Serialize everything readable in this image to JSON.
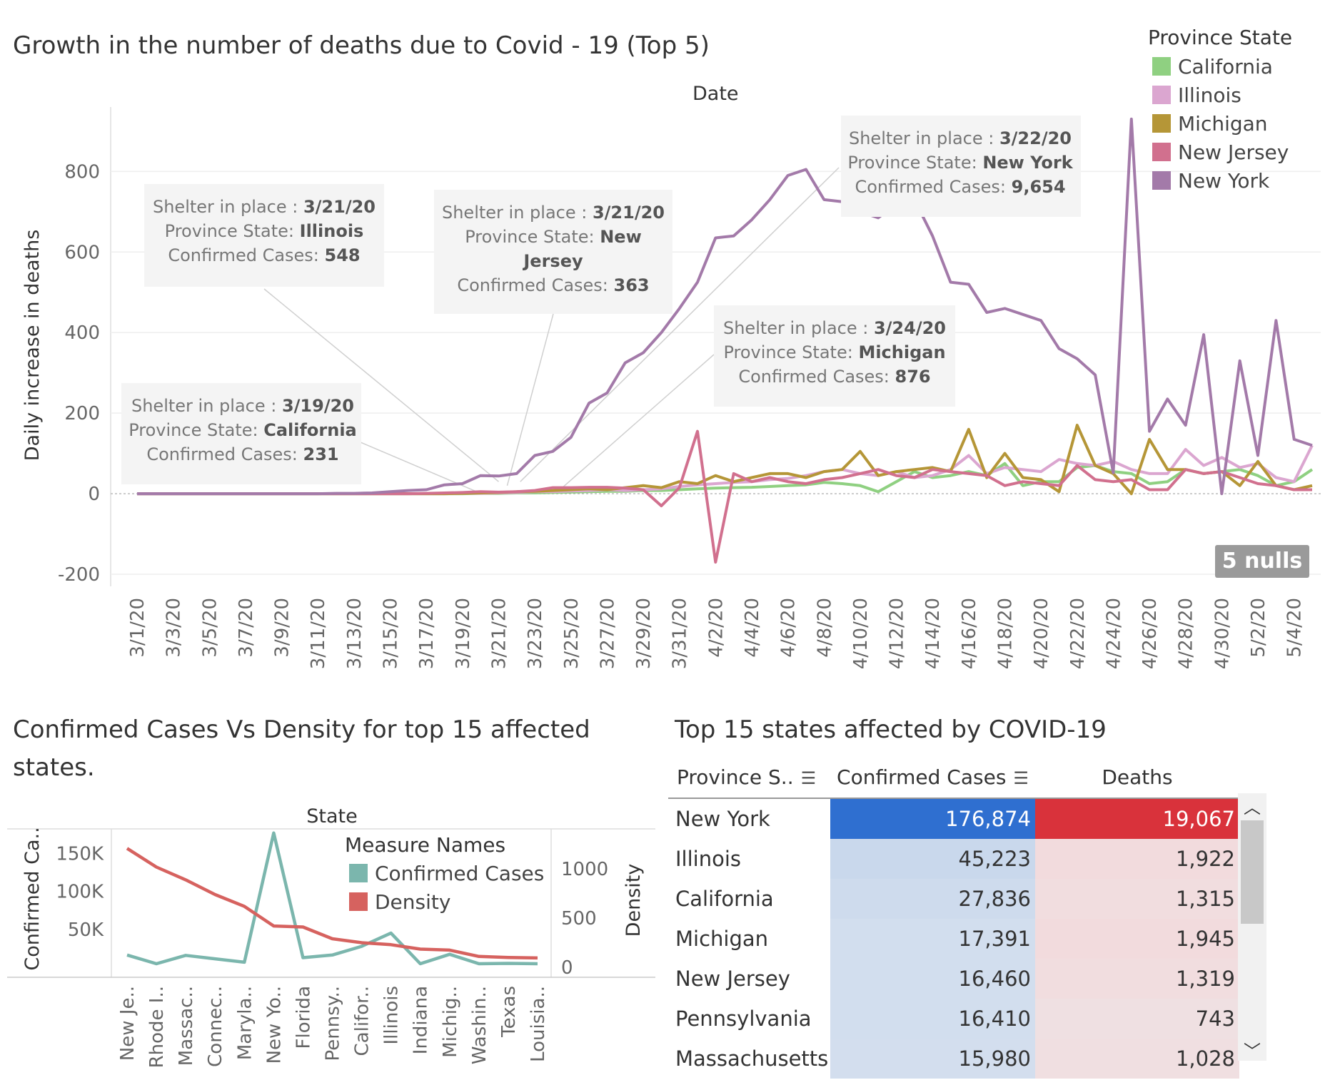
{
  "main_chart": {
    "title": "Growth in the number of deaths due to Covid - 19 (Top 5)",
    "x_header": "Date",
    "y_label": "Daily increase in deaths",
    "null_badge": "5 nulls",
    "legend_title": "Province State",
    "legend": [
      {
        "label": "California",
        "color": "#8fd081"
      },
      {
        "label": "Illinois",
        "color": "#dba6d0"
      },
      {
        "label": "Michigan",
        "color": "#b59637"
      },
      {
        "label": "New Jersey",
        "color": "#d1708e"
      },
      {
        "label": "New York",
        "color": "#a37aa9"
      }
    ],
    "annotations": [
      {
        "line1_label": "Shelter in place : ",
        "line1_value": "3/21/20",
        "line2_label": "Province State: ",
        "line2_value": "Illinois",
        "line3_label": "Confirmed Cases: ",
        "line3_value": "548"
      },
      {
        "line1_label": "Shelter in place : ",
        "line1_value": "3/21/20",
        "line2_label": "Province State: ",
        "line2_value": "New",
        "line2b_value": "Jersey",
        "line3_label": "Confirmed Cases: ",
        "line3_value": "363"
      },
      {
        "line1_label": "Shelter in place : ",
        "line1_value": "3/22/20",
        "line2_label": "Province State: ",
        "line2_value": "New York",
        "line3_label": "Confirmed Cases: ",
        "line3_value": "9,654"
      },
      {
        "line1_label": "Shelter in place : ",
        "line1_value": "3/24/20",
        "line2_label": "Province State: ",
        "line2_value": "Michigan",
        "line3_label": "Confirmed Cases: ",
        "line3_value": "876"
      },
      {
        "line1_label": "Shelter in place : ",
        "line1_value": "3/19/20",
        "line2_label": "Province State: ",
        "line2_value": "California",
        "line3_label": "Confirmed Cases: ",
        "line3_value": "231"
      }
    ]
  },
  "density_chart": {
    "title_line1": "Confirmed Cases Vs Density for top 15 affected",
    "title_line2": "states.",
    "x_header": "State",
    "y_left_label": "Confirmed Ca..",
    "y_right_label": "Density",
    "legend_title": "Measure Names",
    "legend": [
      {
        "label": "Confirmed Cases",
        "color": "#7bb6ad"
      },
      {
        "label": "Density",
        "color": "#d6625f"
      }
    ]
  },
  "table": {
    "title": "Top 15 states affected by COVID-19",
    "headers": [
      "Province S..",
      "Confirmed Cases",
      "Deaths"
    ],
    "rows": [
      {
        "state": "New York",
        "cases": "176,874",
        "deaths": "19,067"
      },
      {
        "state": "Illinois",
        "cases": "45,223",
        "deaths": "1,922"
      },
      {
        "state": "California",
        "cases": "27,836",
        "deaths": "1,315"
      },
      {
        "state": "Michigan",
        "cases": "17,391",
        "deaths": "1,945"
      },
      {
        "state": "New Jersey",
        "cases": "16,460",
        "deaths": "1,319"
      },
      {
        "state": "Pennsylvania",
        "cases": "16,410",
        "deaths": "743"
      },
      {
        "state": "Massachusetts",
        "cases": "15,980",
        "deaths": "1,028"
      }
    ]
  },
  "chart_data": [
    {
      "type": "line",
      "title": "Growth in the number of deaths due to Covid - 19 (Top 5)",
      "xlabel": "Date",
      "ylabel": "Daily increase in deaths",
      "ylim": [
        -230,
        960
      ],
      "y_ticks": [
        -200,
        0,
        200,
        400,
        600,
        800
      ],
      "x": [
        "3/1/20",
        "3/2/20",
        "3/3/20",
        "3/4/20",
        "3/5/20",
        "3/6/20",
        "3/7/20",
        "3/8/20",
        "3/9/20",
        "3/10/20",
        "3/11/20",
        "3/12/20",
        "3/13/20",
        "3/14/20",
        "3/15/20",
        "3/16/20",
        "3/17/20",
        "3/18/20",
        "3/19/20",
        "3/20/20",
        "3/21/20",
        "3/22/20",
        "3/23/20",
        "3/24/20",
        "3/25/20",
        "3/26/20",
        "3/27/20",
        "3/28/20",
        "3/29/20",
        "3/30/20",
        "3/31/20",
        "4/1/20",
        "4/2/20",
        "4/3/20",
        "4/4/20",
        "4/5/20",
        "4/6/20",
        "4/7/20",
        "4/8/20",
        "4/9/20",
        "4/10/20",
        "4/11/20",
        "4/12/20",
        "4/13/20",
        "4/14/20",
        "4/15/20",
        "4/16/20",
        "4/17/20",
        "4/18/20",
        "4/19/20",
        "4/20/20",
        "4/21/20",
        "4/22/20",
        "4/23/20",
        "4/24/20",
        "4/25/20",
        "4/26/20",
        "4/27/20",
        "4/28/20",
        "4/29/20",
        "4/30/20",
        "5/1/20",
        "5/2/20",
        "5/3/20",
        "5/4/20",
        "5/5/20"
      ],
      "x_tick_labels": [
        "3/1/20",
        "3/3/20",
        "3/5/20",
        "3/7/20",
        "3/9/20",
        "3/11/20",
        "3/13/20",
        "3/15/20",
        "3/17/20",
        "3/19/20",
        "3/21/20",
        "3/23/20",
        "3/25/20",
        "3/27/20",
        "3/29/20",
        "3/31/20",
        "4/2/20",
        "4/4/20",
        "4/6/20",
        "4/8/20",
        "4/10/20",
        "4/12/20",
        "4/14/20",
        "4/16/20",
        "4/18/20",
        "4/20/20",
        "4/22/20",
        "4/24/20",
        "4/26/20",
        "4/28/20",
        "4/30/20",
        "5/2/20",
        "5/4/20"
      ],
      "series": [
        {
          "name": "New York",
          "color": "#a37aa9",
          "values": [
            0,
            0,
            0,
            0,
            0,
            0,
            0,
            0,
            0,
            0,
            0,
            1,
            1,
            2,
            5,
            8,
            10,
            22,
            25,
            45,
            44,
            50,
            95,
            105,
            140,
            225,
            250,
            325,
            350,
            400,
            460,
            525,
            635,
            640,
            680,
            730,
            790,
            805,
            730,
            725,
            700,
            685,
            720,
            730,
            640,
            525,
            520,
            450,
            460,
            445,
            430,
            360,
            335,
            295,
            52,
            930,
            155,
            235,
            170,
            395,
            0,
            330,
            95,
            430,
            135,
            120
          ]
        },
        {
          "name": "New Jersey",
          "color": "#d1708e",
          "values": [
            0,
            0,
            0,
            0,
            0,
            0,
            0,
            0,
            0,
            0,
            0,
            0,
            0,
            0,
            0,
            0,
            1,
            2,
            3,
            5,
            4,
            5,
            8,
            15,
            15,
            16,
            16,
            14,
            10,
            -30,
            15,
            155,
            -170,
            50,
            30,
            40,
            30,
            25,
            35,
            40,
            50,
            60,
            45,
            40,
            60,
            55,
            50,
            45,
            20,
            30,
            25,
            20,
            70,
            35,
            30,
            35,
            10,
            10,
            60,
            50,
            55,
            40,
            25,
            20,
            10,
            10
          ]
        },
        {
          "name": "Michigan",
          "color": "#b59637",
          "values": [
            0,
            0,
            0,
            0,
            0,
            0,
            0,
            0,
            0,
            0,
            0,
            0,
            0,
            0,
            0,
            0,
            0,
            0,
            1,
            2,
            3,
            5,
            6,
            8,
            10,
            12,
            10,
            15,
            20,
            15,
            30,
            25,
            45,
            30,
            40,
            50,
            50,
            40,
            55,
            60,
            105,
            45,
            55,
            60,
            65,
            55,
            160,
            40,
            100,
            40,
            35,
            5,
            170,
            70,
            50,
            0,
            135,
            60,
            60,
            50,
            55,
            20,
            80,
            20,
            10,
            20
          ]
        },
        {
          "name": "Illinois",
          "color": "#dba6d0",
          "values": [
            0,
            0,
            0,
            0,
            0,
            0,
            0,
            0,
            0,
            0,
            0,
            0,
            0,
            0,
            0,
            0,
            0,
            0,
            1,
            1,
            2,
            3,
            5,
            5,
            7,
            8,
            10,
            8,
            10,
            12,
            18,
            22,
            25,
            28,
            30,
            35,
            38,
            45,
            55,
            60,
            50,
            45,
            55,
            40,
            45,
            60,
            95,
            50,
            65,
            60,
            55,
            85,
            75,
            70,
            80,
            60,
            50,
            50,
            110,
            70,
            90,
            65,
            75,
            40,
            30,
            120
          ]
        },
        {
          "name": "California",
          "color": "#8fd081",
          "values": [
            0,
            0,
            0,
            0,
            0,
            0,
            0,
            0,
            0,
            0,
            0,
            0,
            0,
            0,
            0,
            0,
            0,
            0,
            0,
            1,
            1,
            2,
            2,
            3,
            4,
            5,
            6,
            6,
            8,
            8,
            10,
            12,
            14,
            15,
            16,
            18,
            20,
            22,
            28,
            25,
            20,
            5,
            30,
            55,
            40,
            45,
            55,
            45,
            75,
            20,
            30,
            30,
            65,
            70,
            55,
            50,
            25,
            30,
            60,
            50,
            55,
            60,
            45,
            20,
            30,
            60
          ]
        }
      ]
    },
    {
      "type": "line",
      "title": "Confirmed Cases Vs Density for top 15 affected states.",
      "xlabel": "State",
      "categories": [
        "New Je..",
        "Rhode I..",
        "Massac..",
        "Connec..",
        "Maryla..",
        "New Yo..",
        "Florida",
        "Pennsy..",
        "Califor..",
        "Illinois",
        "Indiana",
        "Michig..",
        "Washin..",
        "Texas",
        "Louisia.."
      ],
      "y_left_label": "Confirmed Ca..",
      "y_left_ticks": [
        "50K",
        "100K",
        "150K"
      ],
      "y_left_tick_values": [
        50000,
        100000,
        150000
      ],
      "y_left_lim": [
        -10000,
        185000
      ],
      "y_right_label": "Density",
      "y_right_ticks": [
        "0",
        "500",
        "1000"
      ],
      "y_right_tick_values": [
        0,
        500,
        1000
      ],
      "y_right_lim": [
        -80,
        1430
      ],
      "series": [
        {
          "name": "Confirmed Cases",
          "color": "#7bb6ad",
          "axis": "left",
          "values": [
            16460,
            5000,
            15980,
            11500,
            7000,
            176874,
            13000,
            16410,
            27836,
            45223,
            5000,
            17391,
            5000,
            5500,
            5000
          ]
        },
        {
          "name": "Density",
          "color": "#d6625f",
          "axis": "right",
          "values": [
            1210,
            1020,
            890,
            740,
            620,
            420,
            410,
            290,
            250,
            230,
            185,
            175,
            110,
            100,
            95
          ]
        }
      ]
    }
  ]
}
